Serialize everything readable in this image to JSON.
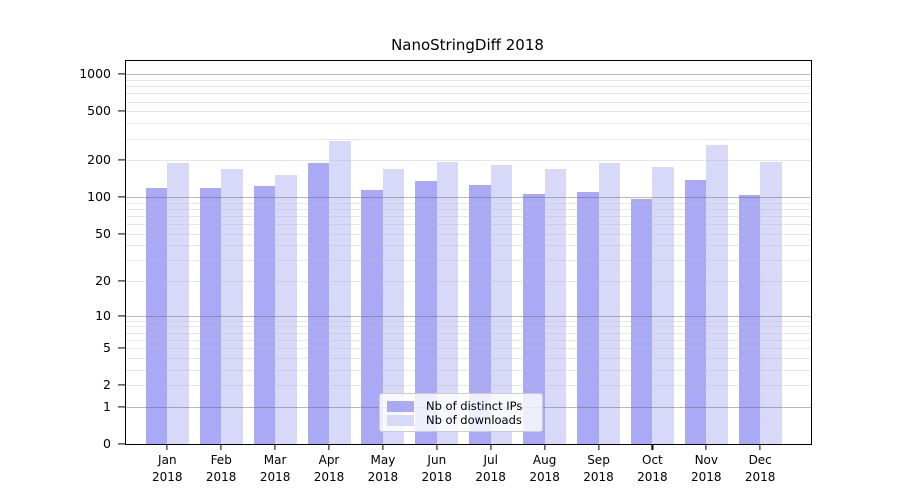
{
  "chart_data": {
    "type": "bar",
    "title": "NanoStringDiff 2018",
    "categories": [
      "Jan",
      "Feb",
      "Mar",
      "Apr",
      "May",
      "Jun",
      "Jul",
      "Aug",
      "Sep",
      "Oct",
      "Nov",
      "Dec"
    ],
    "category_year": "2018",
    "series": [
      {
        "name": "Nb of distinct IPs",
        "color": "#a9a9f6",
        "values": [
          118,
          118,
          124,
          190,
          114,
          136,
          126,
          105,
          110,
          97,
          139,
          103
        ]
      },
      {
        "name": "Nb of downloads",
        "color": "#d8d8f9",
        "values": [
          191,
          170,
          152,
          289,
          168,
          195,
          184,
          171,
          189,
          175,
          264,
          194
        ]
      }
    ],
    "yscale": "log10(value+1)",
    "yticks": [
      1000,
      500,
      200,
      100,
      50,
      20,
      10,
      5,
      2,
      1,
      0
    ],
    "ylim": [
      0,
      1280
    ],
    "xlabel": "",
    "ylabel": "",
    "grid": "horizontal, minor log lines light grey, decade lines darker",
    "legend_position": "lower center"
  }
}
